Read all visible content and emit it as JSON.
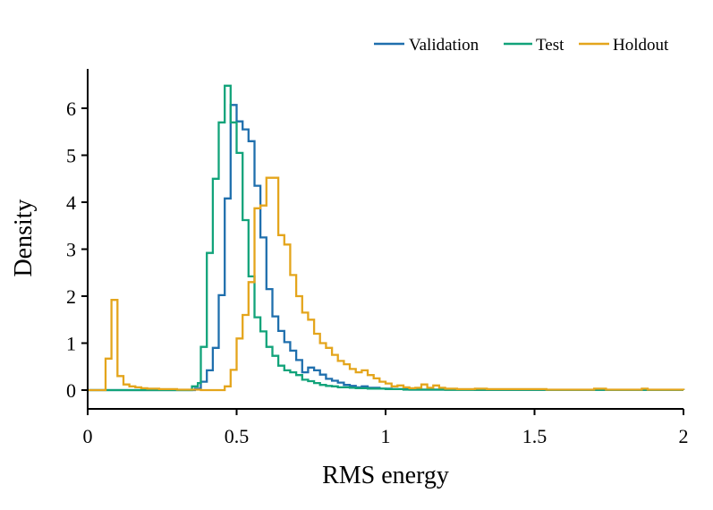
{
  "chart_data": {
    "type": "histogram-step",
    "title": "",
    "xlabel": "RMS energy",
    "ylabel": "Density",
    "xlim": [
      0,
      2
    ],
    "ylim": [
      -0.3,
      6.85
    ],
    "xticks": [
      0,
      0.5,
      1,
      1.5,
      2
    ],
    "xtick_labels": [
      "0",
      "0.5",
      "1",
      "1.5",
      "2"
    ],
    "yticks": [
      0,
      1,
      2,
      3,
      4,
      5,
      6
    ],
    "ytick_labels": [
      "0",
      "1",
      "2",
      "3",
      "4",
      "5",
      "6"
    ],
    "legend_position": "top-right",
    "series": [
      {
        "name": "Validation",
        "color": "#1f6fad",
        "steps": [
          [
            0,
            0
          ],
          [
            0.36,
            0.03
          ],
          [
            0.38,
            0.18
          ],
          [
            0.4,
            0.42
          ],
          [
            0.42,
            0.9
          ],
          [
            0.44,
            2.02
          ],
          [
            0.46,
            4.08
          ],
          [
            0.48,
            6.07
          ],
          [
            0.5,
            5.72
          ],
          [
            0.52,
            5.55
          ],
          [
            0.54,
            5.3
          ],
          [
            0.56,
            4.35
          ],
          [
            0.58,
            3.25
          ],
          [
            0.6,
            2.15
          ],
          [
            0.62,
            1.57
          ],
          [
            0.64,
            1.26
          ],
          [
            0.66,
            1.02
          ],
          [
            0.68,
            0.84
          ],
          [
            0.7,
            0.64
          ],
          [
            0.72,
            0.38
          ],
          [
            0.74,
            0.48
          ],
          [
            0.76,
            0.42
          ],
          [
            0.78,
            0.33
          ],
          [
            0.8,
            0.24
          ],
          [
            0.82,
            0.2
          ],
          [
            0.84,
            0.16
          ],
          [
            0.86,
            0.11
          ],
          [
            0.88,
            0.09
          ],
          [
            0.9,
            0.06
          ],
          [
            0.92,
            0.08
          ],
          [
            0.94,
            0.05
          ],
          [
            0.96,
            0.05
          ],
          [
            0.98,
            0.03
          ],
          [
            1.0,
            0.03
          ],
          [
            1.02,
            0.02
          ],
          [
            1.04,
            0.02
          ],
          [
            1.08,
            0.01
          ],
          [
            1.14,
            0.01
          ],
          [
            1.3,
            0.005
          ],
          [
            2.0,
            0
          ]
        ]
      },
      {
        "name": "Test",
        "color": "#12a37a",
        "steps": [
          [
            0,
            0
          ],
          [
            0.35,
            0.08
          ],
          [
            0.37,
            0.15
          ],
          [
            0.38,
            0.92
          ],
          [
            0.4,
            2.92
          ],
          [
            0.42,
            4.5
          ],
          [
            0.44,
            5.7
          ],
          [
            0.46,
            6.48
          ],
          [
            0.48,
            5.7
          ],
          [
            0.5,
            5.05
          ],
          [
            0.52,
            3.62
          ],
          [
            0.54,
            2.42
          ],
          [
            0.56,
            1.55
          ],
          [
            0.58,
            1.25
          ],
          [
            0.6,
            0.92
          ],
          [
            0.62,
            0.73
          ],
          [
            0.64,
            0.52
          ],
          [
            0.66,
            0.42
          ],
          [
            0.68,
            0.38
          ],
          [
            0.7,
            0.32
          ],
          [
            0.72,
            0.22
          ],
          [
            0.74,
            0.19
          ],
          [
            0.76,
            0.15
          ],
          [
            0.78,
            0.11
          ],
          [
            0.8,
            0.09
          ],
          [
            0.82,
            0.08
          ],
          [
            0.84,
            0.06
          ],
          [
            0.86,
            0.06
          ],
          [
            0.88,
            0.05
          ],
          [
            0.9,
            0.04
          ],
          [
            0.94,
            0.03
          ],
          [
            1.0,
            0.02
          ],
          [
            1.06,
            0.01
          ],
          [
            1.2,
            0.005
          ],
          [
            2.0,
            0
          ]
        ]
      },
      {
        "name": "Holdout",
        "color": "#e4a51c",
        "steps": [
          [
            0,
            0
          ],
          [
            0.06,
            0.67
          ],
          [
            0.08,
            1.92
          ],
          [
            0.1,
            0.3
          ],
          [
            0.12,
            0.12
          ],
          [
            0.14,
            0.08
          ],
          [
            0.16,
            0.06
          ],
          [
            0.18,
            0.04
          ],
          [
            0.2,
            0.03
          ],
          [
            0.24,
            0.02
          ],
          [
            0.3,
            0.01
          ],
          [
            0.38,
            0
          ],
          [
            0.46,
            0.08
          ],
          [
            0.48,
            0.43
          ],
          [
            0.5,
            1.1
          ],
          [
            0.52,
            1.6
          ],
          [
            0.54,
            2.3
          ],
          [
            0.56,
            3.87
          ],
          [
            0.58,
            3.93
          ],
          [
            0.6,
            4.52
          ],
          [
            0.64,
            3.3
          ],
          [
            0.66,
            3.1
          ],
          [
            0.68,
            2.45
          ],
          [
            0.7,
            2.0
          ],
          [
            0.72,
            1.65
          ],
          [
            0.74,
            1.5
          ],
          [
            0.76,
            1.2
          ],
          [
            0.78,
            1.0
          ],
          [
            0.8,
            0.9
          ],
          [
            0.82,
            0.75
          ],
          [
            0.84,
            0.62
          ],
          [
            0.86,
            0.55
          ],
          [
            0.88,
            0.45
          ],
          [
            0.9,
            0.38
          ],
          [
            0.92,
            0.42
          ],
          [
            0.94,
            0.32
          ],
          [
            0.96,
            0.25
          ],
          [
            0.98,
            0.18
          ],
          [
            1.0,
            0.14
          ],
          [
            1.02,
            0.08
          ],
          [
            1.04,
            0.1
          ],
          [
            1.06,
            0.06
          ],
          [
            1.08,
            0.04
          ],
          [
            1.1,
            0.05
          ],
          [
            1.12,
            0.12
          ],
          [
            1.14,
            0.05
          ],
          [
            1.16,
            0.1
          ],
          [
            1.18,
            0.05
          ],
          [
            1.2,
            0.03
          ],
          [
            1.24,
            0.02
          ],
          [
            1.3,
            0.03
          ],
          [
            1.34,
            0.02
          ],
          [
            1.4,
            0.02
          ],
          [
            1.48,
            0.02
          ],
          [
            1.54,
            0.01
          ],
          [
            1.7,
            0.03
          ],
          [
            1.74,
            0.01
          ],
          [
            1.86,
            0.03
          ],
          [
            1.88,
            0.01
          ],
          [
            2.0,
            0
          ]
        ]
      }
    ]
  }
}
